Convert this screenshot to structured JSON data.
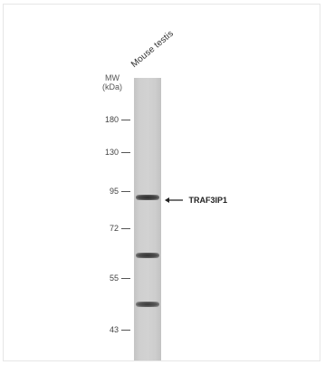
{
  "blot": {
    "lane_label": "Mouse testis",
    "mw_title_line1": "MW",
    "mw_title_line2": "(kDa)",
    "markers": [
      "180",
      "130",
      "95",
      "72",
      "55",
      "43"
    ],
    "target_label": "TRAF3IP1"
  },
  "colors": {
    "lane": "#d0d0d0",
    "band": "#2c2c2c",
    "frame": "#e6e6e6"
  },
  "icons": {
    "target_arrow": "left-arrow-icon"
  }
}
